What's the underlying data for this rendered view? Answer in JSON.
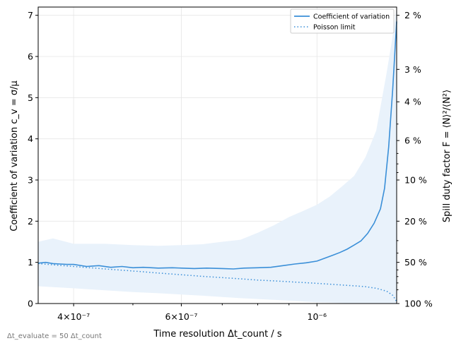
{
  "chart_data": {
    "type": "line",
    "title": "",
    "xscale": "log",
    "xlim": [
      3.5e-07,
      1.35e-06
    ],
    "ylim": [
      0,
      7.2
    ],
    "grid": true,
    "legend_position": "top-right",
    "xlabel": "Time resolution   Δt_count / s",
    "ylabel": "Coefficient of variation   c_v = σ/μ",
    "y2label": "Spill duty factor   F = ⟨N⟩²/⟨N²⟩",
    "note": "Δt_evaluate = 50 Δt_count",
    "x_ticks": [
      {
        "value": 4e-07,
        "label": "4×10⁻⁷"
      },
      {
        "value": 6e-07,
        "label": "6×10⁻⁷"
      },
      {
        "value": 1e-06,
        "label": "10⁻⁶"
      }
    ],
    "y_ticks": [
      0,
      1,
      2,
      3,
      4,
      5,
      6,
      7
    ],
    "y2_ticks": [
      {
        "value": 0.02,
        "label": "2 %"
      },
      {
        "value": 0.03,
        "label": "3 %"
      },
      {
        "value": 0.04,
        "label": "4 %"
      },
      {
        "value": 0.06,
        "label": "6 %"
      },
      {
        "value": 0.1,
        "label": "10 %"
      },
      {
        "value": 0.2,
        "label": "20 %"
      },
      {
        "value": 0.5,
        "label": "50 %"
      },
      {
        "value": 1.0,
        "label": "100 %"
      }
    ],
    "colors": {
      "line": "#3a8fd8",
      "band": "#e9f2fb"
    },
    "series": [
      {
        "name": "Coefficient of variation",
        "style": "solid",
        "x": [
          3.5e-07,
          3.6e-07,
          3.7e-07,
          3.8e-07,
          3.9e-07,
          4e-07,
          4.2e-07,
          4.4e-07,
          4.6e-07,
          4.8e-07,
          5e-07,
          5.2e-07,
          5.5e-07,
          5.8e-07,
          6e-07,
          6.3e-07,
          6.6e-07,
          7e-07,
          7.3e-07,
          7.6e-07,
          8e-07,
          8.4e-07,
          8.8e-07,
          9.2e-07,
          9.6e-07,
          1e-06,
          1.03e-06,
          1.06e-06,
          1.09e-06,
          1.12e-06,
          1.15e-06,
          1.18e-06,
          1.21e-06,
          1.24e-06,
          1.27e-06,
          1.29e-06,
          1.31e-06,
          1.33e-06,
          1.35e-06
        ],
        "values": [
          0.98,
          1.0,
          0.97,
          0.96,
          0.95,
          0.95,
          0.9,
          0.92,
          0.88,
          0.9,
          0.87,
          0.88,
          0.86,
          0.87,
          0.86,
          0.85,
          0.86,
          0.85,
          0.84,
          0.86,
          0.87,
          0.88,
          0.92,
          0.96,
          0.99,
          1.03,
          1.1,
          1.17,
          1.24,
          1.32,
          1.42,
          1.52,
          1.7,
          1.95,
          2.3,
          2.8,
          3.8,
          5.2,
          6.85
        ]
      },
      {
        "name": "Poisson limit",
        "style": "dotted",
        "x": [
          3.5e-07,
          4e-07,
          4.5e-07,
          5e-07,
          5.5e-07,
          6e-07,
          6.5e-07,
          7e-07,
          7.5e-07,
          8e-07,
          8.5e-07,
          9e-07,
          9.5e-07,
          1e-06,
          1.05e-06,
          1.1e-06,
          1.15e-06,
          1.2e-06,
          1.25e-06,
          1.3e-06,
          1.33e-06,
          1.35e-06
        ],
        "values": [
          0.97,
          0.9,
          0.84,
          0.79,
          0.74,
          0.7,
          0.66,
          0.63,
          0.6,
          0.57,
          0.55,
          0.53,
          0.51,
          0.49,
          0.47,
          0.45,
          0.43,
          0.41,
          0.37,
          0.3,
          0.2,
          0.05
        ]
      }
    ],
    "band": {
      "x": [
        3.5e-07,
        3.7e-07,
        4e-07,
        4.5e-07,
        5e-07,
        5.5e-07,
        6e-07,
        6.5e-07,
        7e-07,
        7.5e-07,
        8e-07,
        8.5e-07,
        9e-07,
        9.5e-07,
        1e-06,
        1.05e-06,
        1.1e-06,
        1.15e-06,
        1.2e-06,
        1.25e-06,
        1.3e-06,
        1.33e-06,
        1.35e-06
      ],
      "upper": [
        1.5,
        1.58,
        1.45,
        1.45,
        1.42,
        1.4,
        1.42,
        1.44,
        1.5,
        1.55,
        1.72,
        1.9,
        2.1,
        2.25,
        2.4,
        2.6,
        2.85,
        3.1,
        3.55,
        4.2,
        5.6,
        6.5,
        7.2
      ],
      "lower": [
        0.42,
        0.4,
        0.37,
        0.32,
        0.28,
        0.25,
        0.22,
        0.19,
        0.16,
        0.13,
        0.11,
        0.09,
        0.07,
        0.05,
        0.03,
        0.02,
        0.01,
        0.0,
        0.0,
        0.0,
        0.0,
        0.0,
        0.0
      ]
    }
  }
}
